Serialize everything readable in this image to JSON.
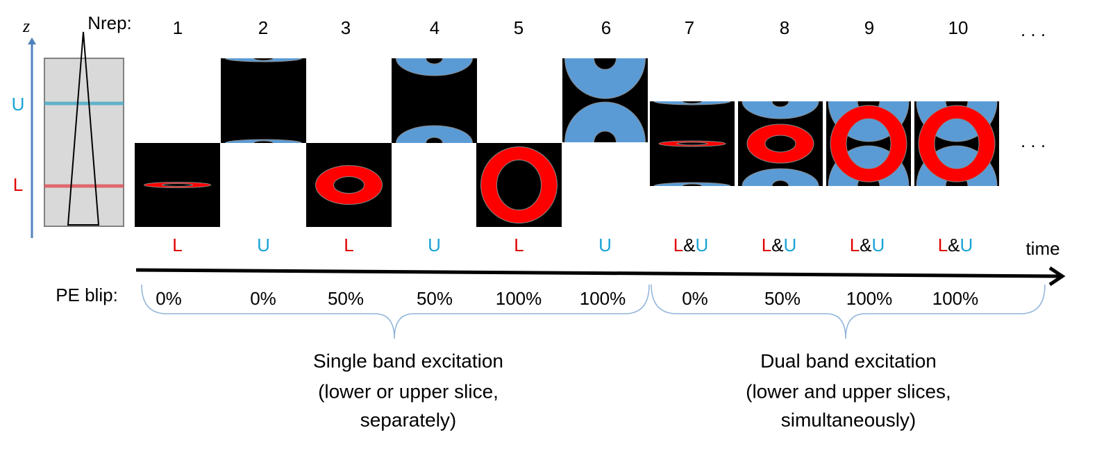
{
  "axis": {
    "z": "z",
    "upper": "U",
    "lower": "L"
  },
  "nrep_label": "Nrep:",
  "frames": [
    {
      "n": "1",
      "slice": [
        "L"
      ],
      "pe": "0%"
    },
    {
      "n": "2",
      "slice": [
        "U"
      ],
      "pe": "0%"
    },
    {
      "n": "3",
      "slice": [
        "L"
      ],
      "pe": "50%"
    },
    {
      "n": "4",
      "slice": [
        "U"
      ],
      "pe": "50%"
    },
    {
      "n": "5",
      "slice": [
        "L"
      ],
      "pe": "100%"
    },
    {
      "n": "6",
      "slice": [
        "U"
      ],
      "pe": "100%"
    },
    {
      "n": "7",
      "slice": [
        "L",
        "&",
        "U"
      ],
      "pe": "0%"
    },
    {
      "n": "8",
      "slice": [
        "L",
        "&",
        "U"
      ],
      "pe": "50%"
    },
    {
      "n": "9",
      "slice": [
        "L",
        "&",
        "U"
      ],
      "pe": "100%"
    },
    {
      "n": "10",
      "slice": [
        "L",
        "&",
        "U"
      ],
      "pe": "100%"
    }
  ],
  "ellipsis": ". . .",
  "time_label": "time",
  "pe_label": "PE blip:",
  "groups": [
    {
      "lines": [
        "Single band excitation",
        "(lower or upper slice,",
        "separately)"
      ]
    },
    {
      "lines": [
        "Dual band excitation",
        "(lower and upper slices,",
        "simultaneously)"
      ]
    }
  ]
}
